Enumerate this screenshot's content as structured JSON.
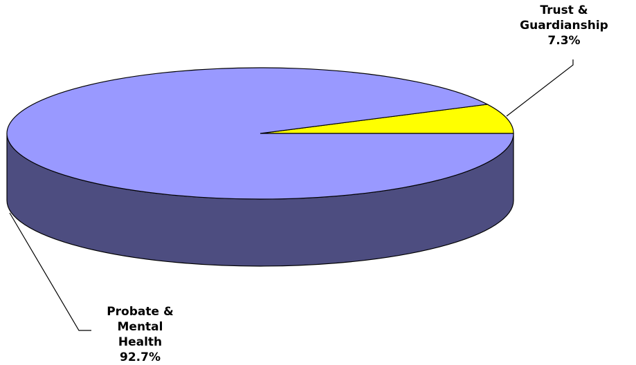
{
  "chart_data": {
    "type": "pie",
    "three_d": true,
    "categories": [
      "Trust & Guardianship",
      "Probate & Mental Health"
    ],
    "values": [
      7.3,
      92.7
    ],
    "value_labels": [
      "7.3%",
      "92.7%"
    ],
    "colors": [
      "#ffff00",
      "#9999ff"
    ]
  }
}
